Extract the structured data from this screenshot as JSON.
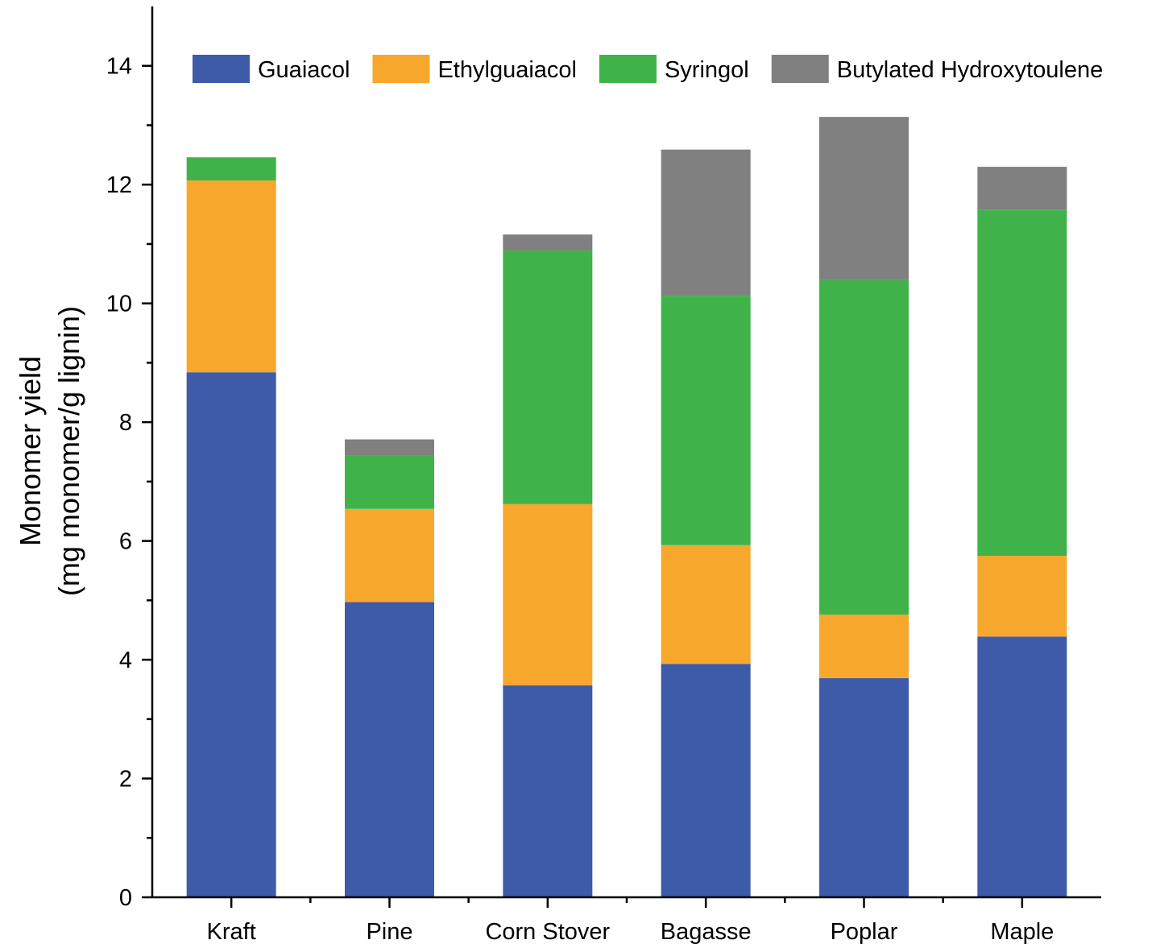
{
  "chart_data": {
    "type": "bar",
    "stacked": true,
    "categories": [
      "Kraft",
      "Pine",
      "Corn Stover",
      "Bagasse",
      "Poplar",
      "Maple"
    ],
    "series": [
      {
        "name": "Guaiacol",
        "color": "#3d5ba8",
        "values": [
          8.84,
          4.97,
          3.57,
          3.93,
          3.69,
          4.39
        ]
      },
      {
        "name": "Ethylguaiacol",
        "color": "#f8a72d",
        "values": [
          3.23,
          1.57,
          3.05,
          2.0,
          1.07,
          1.36
        ]
      },
      {
        "name": "Syringol",
        "color": "#3fb34a",
        "values": [
          0.39,
          0.9,
          4.27,
          4.2,
          5.63,
          5.83
        ]
      },
      {
        "name": "Butylated Hydroxytoulene",
        "color": "#808080",
        "values": [
          0.0,
          0.27,
          0.27,
          2.46,
          2.75,
          0.72
        ]
      }
    ],
    "ylabel_line1": "Monomer yield",
    "ylabel_line2": "(mg monomer/g lignin)",
    "xlabel": "",
    "ylim": [
      0,
      15
    ],
    "yticks": [
      0,
      2,
      4,
      6,
      8,
      10,
      12,
      14
    ],
    "legend_position": "top",
    "grid": false
  }
}
